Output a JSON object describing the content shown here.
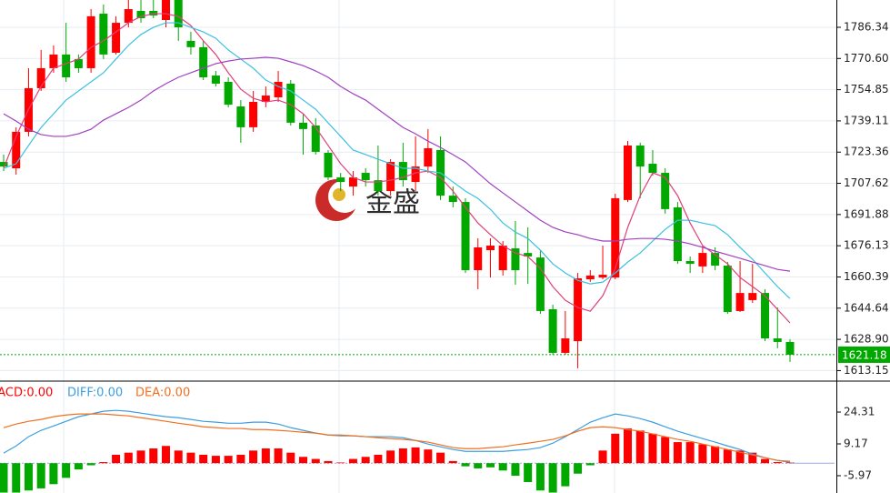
{
  "chart_data": [
    {
      "type": "candlestick",
      "watermark": "金盛",
      "up_color": "#ff0000",
      "down_color": "#00a800",
      "grid": true,
      "ylim": [
        1608.3,
        1800.1
      ],
      "yticks": [
        1786.34,
        {
          "value": 1770.6,
          "label": "1770.60"
        },
        1754.85,
        1739.11,
        1723.36,
        1707.62,
        1691.88,
        1676.13,
        1660.39,
        1644.64,
        {
          "value": 1628.9,
          "label": "1628.90"
        },
        1613.15
      ],
      "open": [
        1718.4,
        1715.2,
        1733.6,
        1755.6,
        1765.7,
        1772.6,
        1770.3,
        1765.7,
        1793.2,
        1773.5,
        1788.6,
        1794.6,
        1794.6,
        1790.0,
        1800.1,
        1779.5,
        1776.3,
        1762.0,
        1758.8,
        1746.4,
        1735.9,
        1748.7,
        1751.0,
        1757.9,
        1738.2,
        1736.8,
        1723.0,
        1710.6,
        1706.0,
        1712.9,
        1709.2,
        1703.7,
        1718.4,
        1708.3,
        1716.1,
        1724.4,
        1701.4,
        1698.2,
        1663.8,
        1673.9,
        1663.8,
        1674.8,
        1672.5,
        1670.2,
        1644.1,
        1622.1,
        1628.0,
        1659.2,
        1660.1,
        1660.1,
        1699.2,
        1726.7,
        1717.5,
        1712.9,
        1695.5,
        1668.4,
        1665.7,
        1672.5,
        1666.1,
        1643.2,
        1648.7,
        1652.3,
        1629.4,
        1627.6
      ],
      "high": [
        1722.1,
        1735.9,
        1765.7,
        1774.9,
        1777.2,
        1788.6,
        1772.6,
        1795.5,
        1797.8,
        1791.9,
        1800.1,
        1800.1,
        1800.1,
        1800.1,
        1800.1,
        1784.1,
        1779.5,
        1764.3,
        1761.1,
        1749.6,
        1754.2,
        1756.5,
        1764.3,
        1759.7,
        1742.8,
        1740.5,
        1724.4,
        1712.9,
        1713.8,
        1715.2,
        1726.7,
        1719.8,
        1728.1,
        1731.3,
        1735.0,
        1731.3,
        1706.0,
        1700.1,
        1679.9,
        1679.9,
        1678.5,
        1688.6,
        1685.4,
        1673.9,
        1646.4,
        1643.2,
        1662.4,
        1663.8,
        1676.2,
        1702.4,
        1729.0,
        1728.1,
        1724.4,
        1715.2,
        1698.2,
        1670.7,
        1676.2,
        1675.3,
        1668.0,
        1668.4,
        1667.0,
        1654.2,
        1645.0,
        1628.9
      ],
      "low": [
        1713.8,
        1712.0,
        1731.3,
        1754.2,
        1763.4,
        1758.8,
        1763.4,
        1763.4,
        1770.3,
        1772.6,
        1786.3,
        1788.6,
        1790.9,
        1786.3,
        1779.5,
        1772.6,
        1759.7,
        1756.5,
        1746.0,
        1728.1,
        1733.6,
        1746.0,
        1748.7,
        1736.8,
        1722.1,
        1722.1,
        1709.2,
        1703.7,
        1701.4,
        1706.0,
        1701.4,
        1701.4,
        1706.0,
        1703.7,
        1712.9,
        1699.2,
        1695.5,
        1662.4,
        1654.2,
        1660.1,
        1661.1,
        1656.5,
        1656.9,
        1641.8,
        1621.1,
        1621.1,
        1614.3,
        1657.9,
        1659.2,
        1659.2,
        1698.2,
        1700.1,
        1711.5,
        1692.3,
        1667.0,
        1662.4,
        1662.4,
        1663.8,
        1641.8,
        1642.7,
        1647.3,
        1628.0,
        1624.4,
        1617.5
      ],
      "close": [
        1716.1,
        1733.6,
        1755.6,
        1765.7,
        1772.6,
        1761.1,
        1765.7,
        1791.9,
        1772.6,
        1788.6,
        1795.5,
        1790.9,
        1792.3,
        1800.1,
        1786.3,
        1776.3,
        1761.1,
        1757.9,
        1747.3,
        1735.9,
        1748.7,
        1751.9,
        1758.8,
        1738.2,
        1735.0,
        1723.5,
        1710.6,
        1708.3,
        1710.6,
        1709.2,
        1703.7,
        1718.4,
        1709.2,
        1716.1,
        1725.3,
        1701.4,
        1698.2,
        1663.8,
        1675.3,
        1676.2,
        1676.2,
        1663.8,
        1670.7,
        1643.2,
        1622.1,
        1629.4,
        1659.7,
        1661.1,
        1661.5,
        1700.1,
        1726.7,
        1716.1,
        1712.9,
        1694.6,
        1668.4,
        1667.0,
        1672.5,
        1666.1,
        1642.7,
        1652.3,
        1652.3,
        1629.4,
        1627.6,
        1621.18
      ],
      "lines": [
        {
          "color": "#e0407a",
          "values": [
            1715.2,
            1731.3,
            1745.0,
            1756.5,
            1765.7,
            1768.0,
            1770.3,
            1776.2,
            1779.5,
            1784.0,
            1788.6,
            1791.8,
            1793.2,
            1793.2,
            1791.8,
            1787.2,
            1779.5,
            1772.6,
            1763.4,
            1755.1,
            1750.5,
            1748.7,
            1749.6,
            1747.3,
            1742.7,
            1735.8,
            1726.7,
            1717.5,
            1710.6,
            1708.3,
            1708.3,
            1709.2,
            1710.6,
            1712.9,
            1713.8,
            1710.6,
            1703.7,
            1695.5,
            1687.6,
            1681.7,
            1676.2,
            1672.5,
            1670.7,
            1664.7,
            1655.5,
            1648.6,
            1645.0,
            1643.1,
            1650.9,
            1664.7,
            1685.4,
            1701.4,
            1712.9,
            1710.6,
            1701.4,
            1687.6,
            1676.2,
            1671.6,
            1667.0,
            1660.1,
            1655.5,
            1650.9,
            1644.0,
            1637.2
          ]
        },
        {
          "color": "#3cc0e0",
          "values": [
            1715.2,
            1717.5,
            1726.7,
            1735.8,
            1742.7,
            1749.6,
            1754.2,
            1758.8,
            1763.4,
            1770.3,
            1777.2,
            1782.7,
            1786.3,
            1788.6,
            1788.6,
            1786.3,
            1784.0,
            1780.8,
            1774.9,
            1770.3,
            1765.7,
            1759.7,
            1756.5,
            1754.2,
            1749.6,
            1745.0,
            1738.1,
            1731.3,
            1724.4,
            1722.1,
            1719.8,
            1717.5,
            1715.2,
            1715.2,
            1713.8,
            1712.9,
            1708.3,
            1703.7,
            1700.0,
            1694.5,
            1687.6,
            1683.0,
            1679.8,
            1673.9,
            1667.0,
            1662.4,
            1658.7,
            1656.9,
            1657.8,
            1662.4,
            1667.9,
            1672.5,
            1678.5,
            1684.4,
            1689.0,
            1689.0,
            1687.6,
            1686.3,
            1681.7,
            1675.3,
            1669.3,
            1662.4,
            1655.5,
            1649.5
          ]
        },
        {
          "color": "#a040c0",
          "values": [
            1742.7,
            1739.0,
            1734.9,
            1732.2,
            1731.3,
            1731.3,
            1732.6,
            1734.9,
            1739.5,
            1742.7,
            1745.9,
            1749.6,
            1754.2,
            1757.9,
            1761.1,
            1763.4,
            1765.7,
            1768.0,
            1769.3,
            1770.3,
            1770.7,
            1771.2,
            1770.7,
            1768.9,
            1767.0,
            1764.3,
            1761.1,
            1756.5,
            1752.8,
            1749.6,
            1745.0,
            1740.4,
            1735.8,
            1732.6,
            1728.9,
            1725.7,
            1722.1,
            1718.4,
            1712.9,
            1707.4,
            1702.8,
            1698.2,
            1693.6,
            1689.0,
            1685.4,
            1683.1,
            1681.7,
            1679.8,
            1678.5,
            1678.5,
            1679.4,
            1679.8,
            1679.8,
            1679.4,
            1678.5,
            1677.1,
            1675.3,
            1673.4,
            1671.6,
            1669.8,
            1667.9,
            1666.1,
            1664.2,
            1663.3
          ]
        }
      ]
    },
    {
      "type": "macd",
      "legend": [
        {
          "text": "MACD:0.00",
          "color": "#ff0000"
        },
        {
          "text": "DIFF:0.00",
          "color": "#3c9ee0"
        },
        {
          "text": "DEA:0.00",
          "color": "#f07020"
        }
      ],
      "ylim": [
        -14.2,
        38.6
      ],
      "yticks": [
        24.31,
        9.17,
        -5.97
      ],
      "up_color": "#ff0000",
      "down_color": "#00a800",
      "histogram": [
        -14,
        -14,
        -13,
        -12,
        -10,
        -7,
        -3,
        -1,
        0.5,
        4,
        5,
        6,
        7,
        8.2,
        6,
        5,
        4,
        3.5,
        3.5,
        4,
        6,
        7,
        7,
        5,
        3,
        2,
        1,
        0.3,
        2,
        3,
        4,
        6,
        7,
        7.5,
        6.5,
        5,
        1,
        -1.5,
        -2.5,
        -2,
        -3.5,
        -6,
        -9,
        -13,
        -14,
        -11,
        -5,
        -1,
        6,
        14,
        16.5,
        15.5,
        14,
        12.5,
        10,
        10,
        9,
        8,
        6.5,
        6,
        5,
        2,
        0.5,
        0.3
      ],
      "series": [
        {
          "color": "#3c9ee0",
          "values": [
            4.8,
            8.2,
            12.6,
            15.6,
            17.7,
            19.9,
            22.1,
            23.4,
            24.7,
            25.1,
            24.7,
            23.8,
            22.9,
            22.1,
            21.6,
            20.8,
            19.9,
            19.5,
            19.0,
            19.0,
            19.5,
            19.5,
            18.6,
            16.9,
            15.6,
            14.3,
            13.4,
            13.0,
            13.0,
            12.6,
            12.6,
            12.6,
            12.1,
            10.8,
            9.1,
            7.8,
            6.5,
            5.6,
            5.6,
            5.6,
            5.6,
            6.1,
            6.5,
            7.4,
            9.5,
            12.6,
            16.0,
            19.5,
            21.6,
            23.4,
            22.5,
            21.2,
            19.5,
            17.3,
            15.2,
            13.4,
            11.7,
            10.0,
            8.2,
            6.5,
            4.3,
            2.6,
            1.3,
            0.4
          ]
        },
        {
          "color": "#f07020",
          "values": [
            16.9,
            18.6,
            19.9,
            20.8,
            22.1,
            22.9,
            23.4,
            23.4,
            23.4,
            22.9,
            22.5,
            21.6,
            20.8,
            19.9,
            19.0,
            18.2,
            17.3,
            16.9,
            16.5,
            16.5,
            16.0,
            16.0,
            15.6,
            15.2,
            14.7,
            14.3,
            13.4,
            13.4,
            13.0,
            12.6,
            12.1,
            11.7,
            11.3,
            10.8,
            10.0,
            8.7,
            7.4,
            6.9,
            6.9,
            7.4,
            7.8,
            8.7,
            9.5,
            10.4,
            11.3,
            13.0,
            15.2,
            16.9,
            17.3,
            16.9,
            16.0,
            15.2,
            13.9,
            12.6,
            11.3,
            10.4,
            9.1,
            7.8,
            6.5,
            5.2,
            3.9,
            2.6,
            1.3,
            0.9
          ]
        }
      ]
    }
  ]
}
